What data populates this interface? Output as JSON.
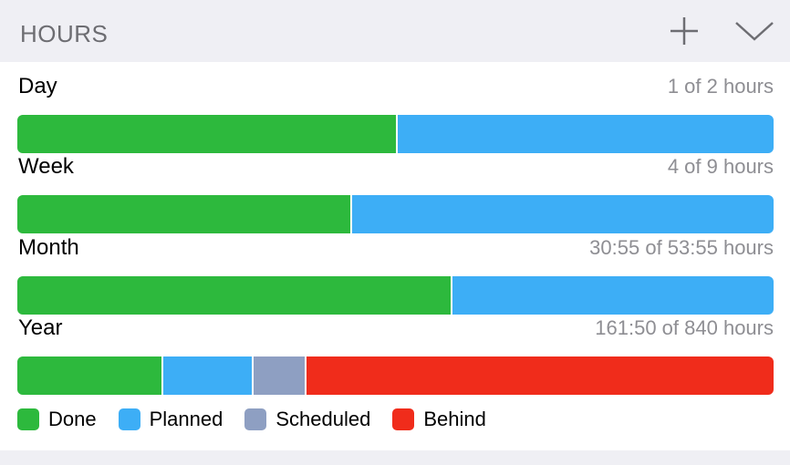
{
  "header": {
    "title": "HOURS"
  },
  "colors": {
    "done": "#2db93d",
    "planned": "#3daef6",
    "scheduled": "#8e9fc2",
    "behind": "#f02c1b"
  },
  "rows": [
    {
      "label": "Day",
      "value": "1 of 2 hours",
      "segments": [
        {
          "key": "done",
          "fraction": 0.5
        },
        {
          "key": "planned",
          "fraction": 0.5
        }
      ]
    },
    {
      "label": "Week",
      "value": "4 of 9 hours",
      "segments": [
        {
          "key": "done",
          "fraction": 0.44
        },
        {
          "key": "planned",
          "fraction": 0.56
        }
      ]
    },
    {
      "label": "Month",
      "value": "30:55 of 53:55 hours",
      "segments": [
        {
          "key": "done",
          "fraction": 0.573
        },
        {
          "key": "planned",
          "fraction": 0.427
        }
      ]
    },
    {
      "label": "Year",
      "value": "161:50 of 840 hours",
      "segments": [
        {
          "key": "done",
          "fraction": 0.19
        },
        {
          "key": "planned",
          "fraction": 0.12
        },
        {
          "key": "scheduled",
          "fraction": 0.07
        },
        {
          "key": "behind",
          "fraction": 0.62
        }
      ]
    }
  ],
  "legend": [
    {
      "key": "done",
      "label": "Done"
    },
    {
      "key": "planned",
      "label": "Planned"
    },
    {
      "key": "scheduled",
      "label": "Scheduled"
    },
    {
      "key": "behind",
      "label": "Behind"
    }
  ]
}
